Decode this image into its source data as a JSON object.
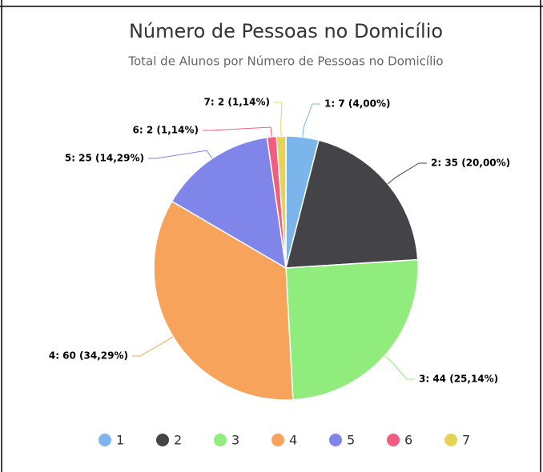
{
  "chart_data": {
    "type": "pie",
    "title": "Número de Pessoas no Domicílio",
    "subtitle": "Total de Alunos por Número de Pessoas no Domicílio",
    "categories": [
      "1",
      "2",
      "3",
      "4",
      "5",
      "6",
      "7"
    ],
    "values": [
      7,
      35,
      44,
      60,
      25,
      2,
      2
    ],
    "value_labels": [
      "1: 7 (4,00%)",
      "2: 35 (20,00%)",
      "3: 44 (25,14%)",
      "4: 60 (34,29%)",
      "5: 25 (14,29%)",
      "6: 2 (1,14%)",
      "7: 2 (1,14%)"
    ],
    "colors": [
      "#7cb5ec",
      "#434348",
      "#90ed7d",
      "#f7a35c",
      "#8085e9",
      "#f15c80",
      "#e4d354"
    ],
    "legend": "bottom"
  }
}
